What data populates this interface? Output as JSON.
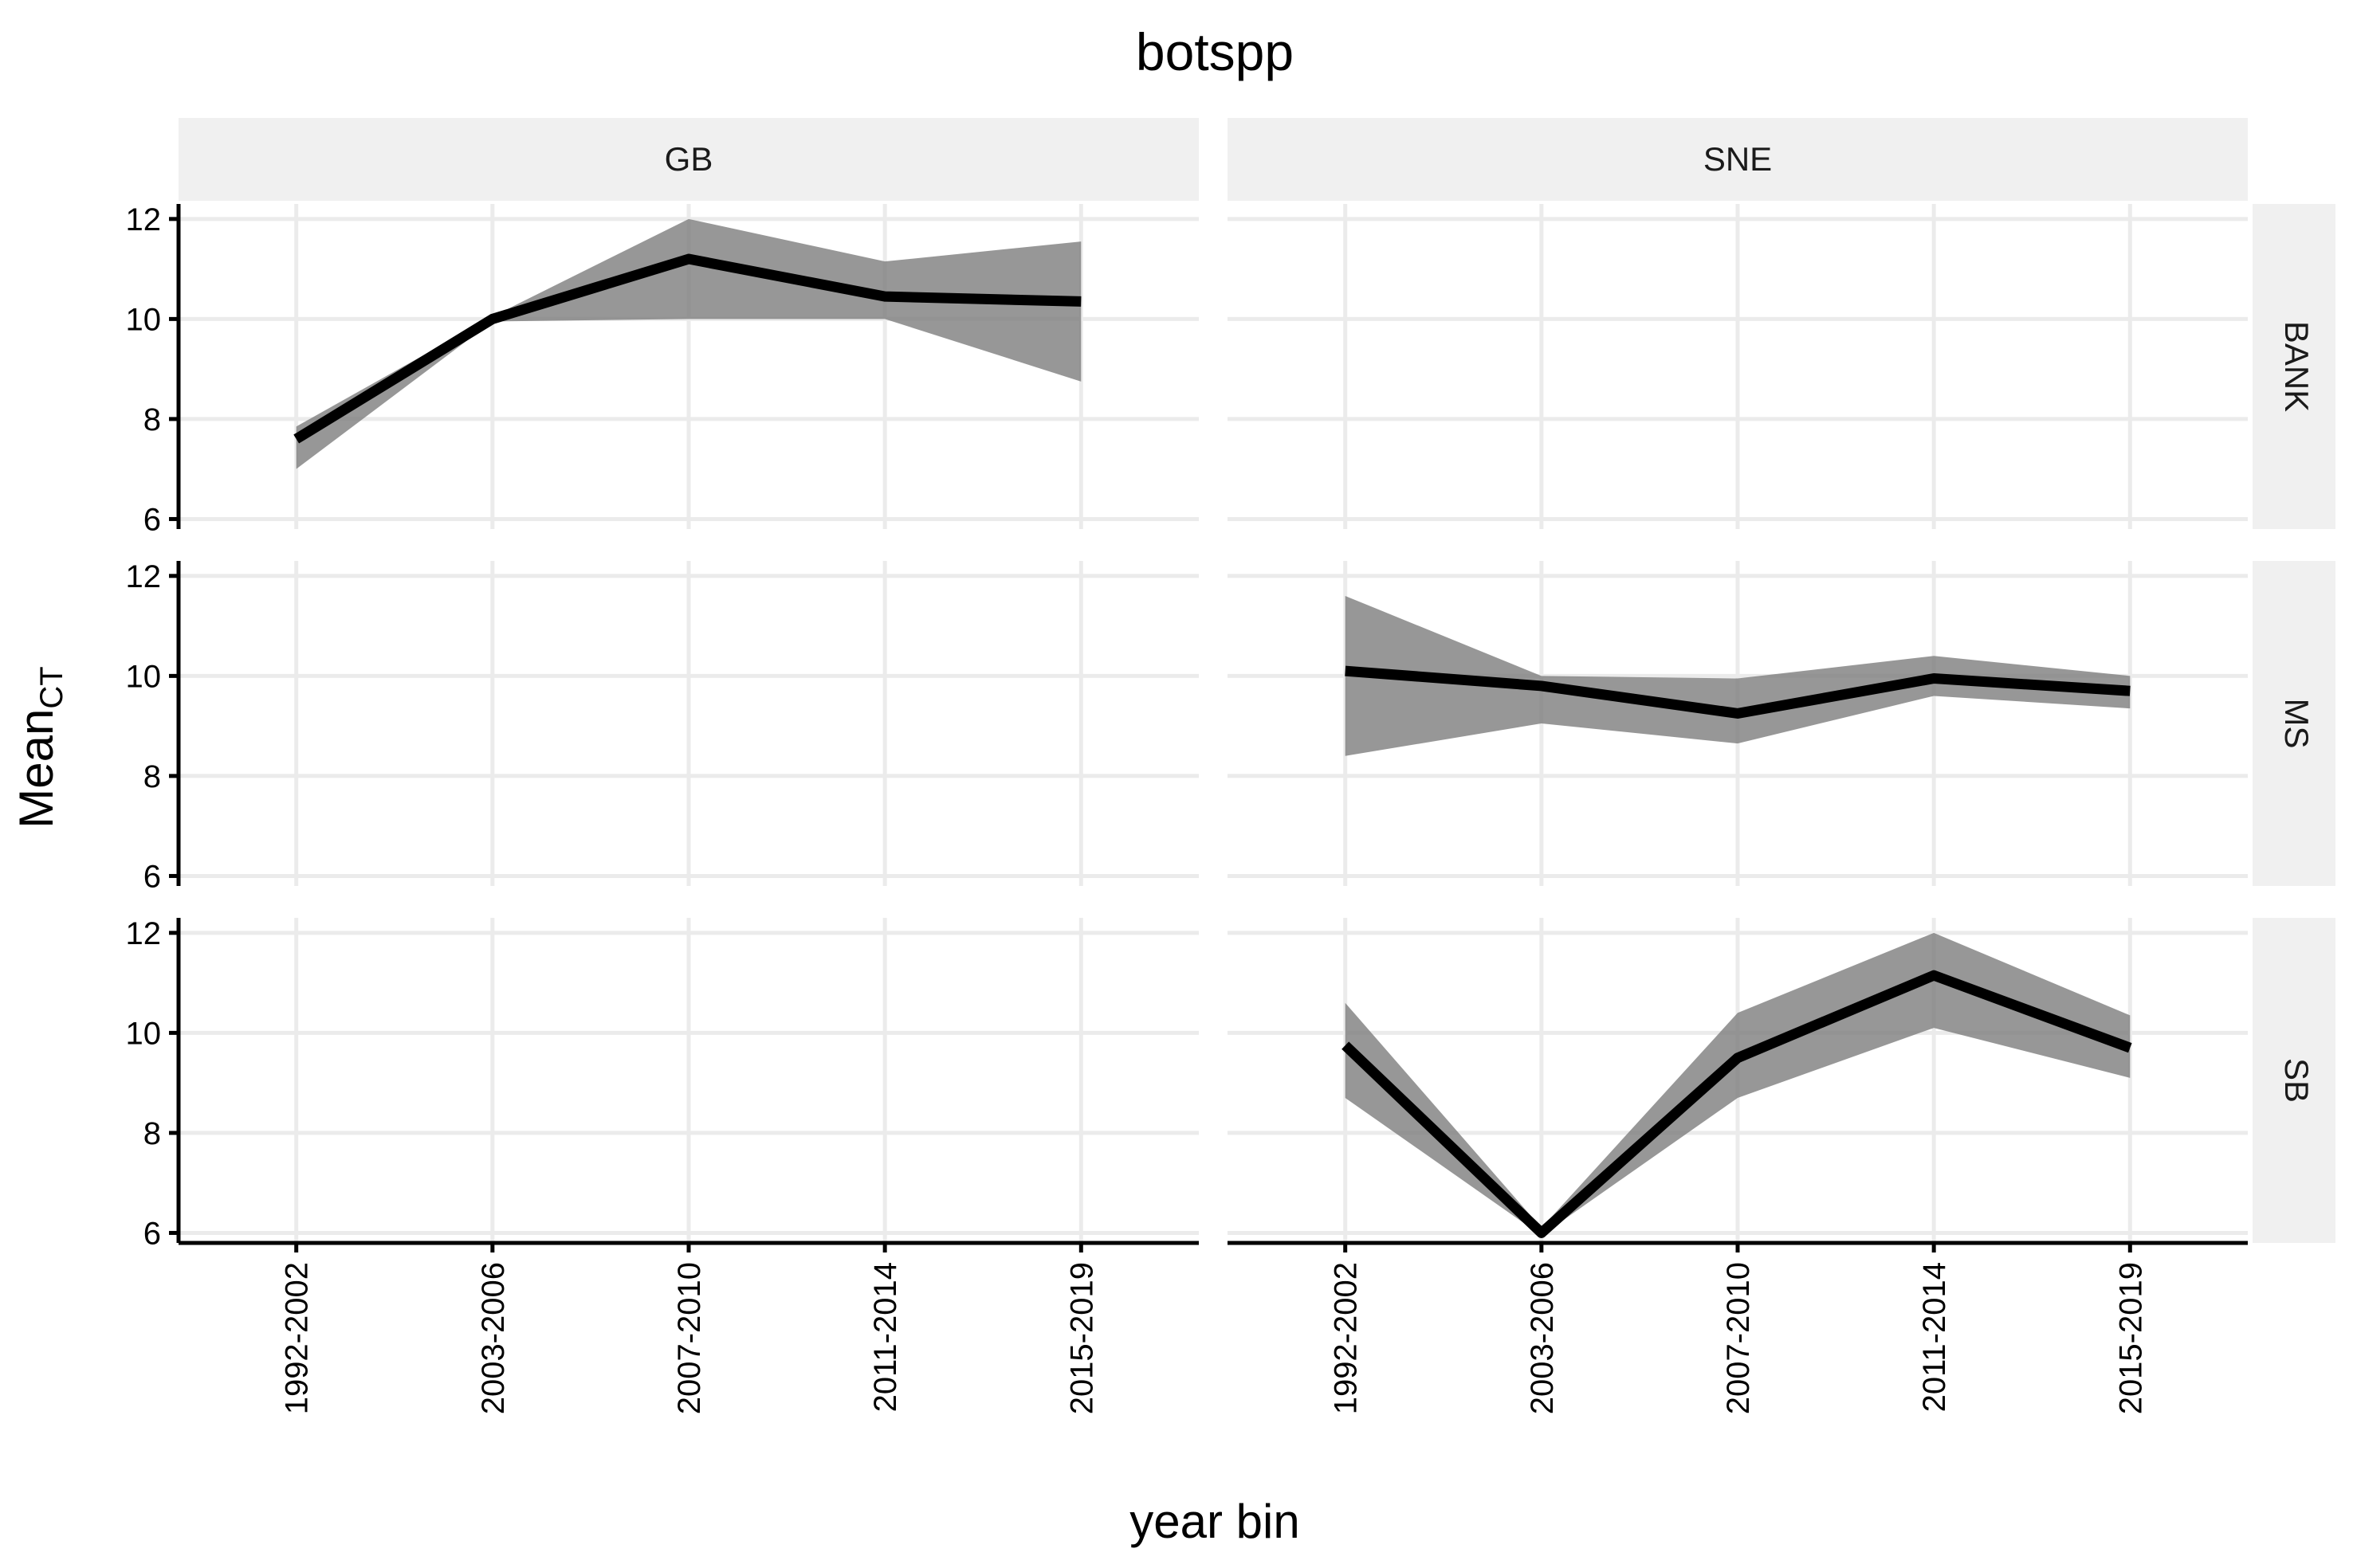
{
  "chart_data": {
    "type": "line",
    "title": "botspp",
    "xlabel": "year bin",
    "ylabel": {
      "main": "Mean",
      "subscript": "CT"
    },
    "categories": [
      "1992-2002",
      "2003-2006",
      "2007-2010",
      "2011-2014",
      "2015-2019"
    ],
    "ylim": [
      5.8,
      12.3
    ],
    "y_ticks": [
      6,
      8,
      10,
      12
    ],
    "grid": true,
    "legend": "none",
    "colors": {
      "line": "#000000",
      "ribbon": "#7a7a7a",
      "strip": "#f0f0f0",
      "grid": "#ebebeb"
    },
    "column_facets": [
      "GB",
      "SNE"
    ],
    "row_facets": [
      "BANK",
      "MS",
      "SB"
    ],
    "panels": [
      {
        "column": "GB",
        "row": "BANK",
        "mean": [
          7.6,
          10.0,
          11.2,
          10.45,
          10.35
        ],
        "lower": [
          7.0,
          9.95,
          10.0,
          10.0,
          8.75
        ],
        "upper": [
          7.85,
          10.05,
          12.0,
          11.15,
          11.55
        ]
      },
      {
        "column": "SNE",
        "row": "BANK",
        "mean": [],
        "lower": [],
        "upper": []
      },
      {
        "column": "GB",
        "row": "MS",
        "mean": [],
        "lower": [],
        "upper": []
      },
      {
        "column": "SNE",
        "row": "MS",
        "mean": [
          10.1,
          9.8,
          9.25,
          9.95,
          9.7
        ],
        "lower": [
          8.4,
          9.05,
          8.65,
          9.6,
          9.35
        ],
        "upper": [
          11.6,
          10.0,
          9.95,
          10.4,
          10.0
        ]
      },
      {
        "column": "GB",
        "row": "SB",
        "mean": [],
        "lower": [],
        "upper": []
      },
      {
        "column": "SNE",
        "row": "SB",
        "mean": [
          9.75,
          6.0,
          9.5,
          11.15,
          9.7
        ],
        "lower": [
          8.7,
          5.95,
          8.7,
          10.1,
          9.1
        ],
        "upper": [
          10.6,
          6.1,
          10.4,
          12.0,
          10.35
        ]
      }
    ]
  }
}
